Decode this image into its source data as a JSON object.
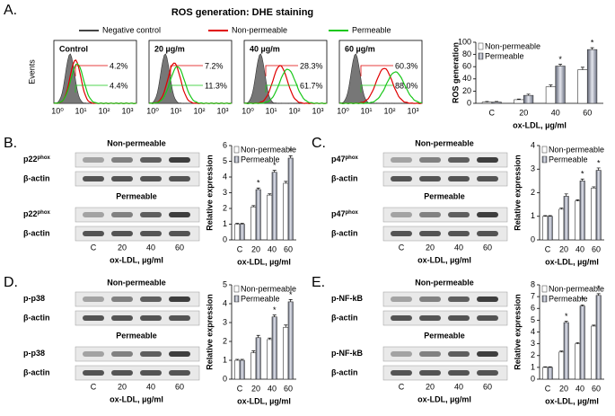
{
  "panel_letters": [
    "A.",
    "B.",
    "C.",
    "D.",
    "E."
  ],
  "flow": {
    "title": "ROS generation: DHE staining",
    "legend": [
      "Negative control",
      "Non-permeable",
      "Permeable"
    ],
    "y_label": "Events",
    "x_ticks": [
      "10⁰",
      "10¹",
      "10²",
      "10³"
    ],
    "plots": [
      {
        "label": "Control",
        "non_permeable": "4.2%",
        "permeable": "4.4%"
      },
      {
        "label": "20 µg/m",
        "non_permeable": "7.2%",
        "permeable": "11.3%"
      },
      {
        "label": "40 µg/m",
        "non_permeable": "28.3%",
        "permeable": "61.7%"
      },
      {
        "label": "60 µg/m",
        "non_permeable": "60.3%",
        "permeable": "88.0%"
      }
    ]
  },
  "blots": [
    {
      "group_titles": [
        "Non-permeable",
        "Permeable"
      ],
      "protein": {
        "base": "p22",
        "sup": "phox"
      },
      "loading": "β-actin",
      "lanes": [
        "C",
        "20",
        "40",
        "60"
      ],
      "x_label": "ox-LDL, µg/ml"
    },
    {
      "group_titles": [
        "Non-permeable",
        "Permeable"
      ],
      "protein": {
        "base": "p47",
        "sup": "phox"
      },
      "loading": "β-actin",
      "lanes": [
        "C",
        "20",
        "40",
        "60"
      ],
      "x_label": "ox-LDL, µg/ml"
    },
    {
      "group_titles": [
        "Non-permeable",
        "Permeable"
      ],
      "protein": {
        "base": "p-p38"
      },
      "loading": "β-actin",
      "lanes": [
        "C",
        "20",
        "40",
        "60"
      ],
      "x_label": "ox-LDL, µg/ml"
    },
    {
      "group_titles": [
        "Non-permeable",
        "Permeable"
      ],
      "protein": {
        "base": "p-NF-kB"
      },
      "loading": "β-actin",
      "lanes": [
        "C",
        "20",
        "40",
        "60"
      ],
      "x_label": "ox-LDL, µg/ml"
    }
  ],
  "chart_data": [
    {
      "type": "bar",
      "y_label": "ROS generation",
      "x_label": "ox-LDL, µg/ml",
      "categories": [
        "C",
        "20",
        "40",
        "60"
      ],
      "ylim": [
        0,
        100
      ],
      "yticks": [
        0,
        20,
        40,
        60,
        80,
        100
      ],
      "series": [
        {
          "name": "Non-permeable",
          "color": "#ffffff",
          "values": [
            2,
            6,
            27,
            55
          ],
          "errors": [
            1,
            1,
            3,
            4
          ]
        },
        {
          "name": "Permeable",
          "color": "#8a8fa0",
          "values": [
            2,
            13,
            61,
            88
          ],
          "errors": [
            1,
            2,
            3,
            3
          ],
          "significance": [
            null,
            null,
            "*",
            "*"
          ]
        }
      ]
    },
    {
      "type": "bar",
      "y_label": "Relative expression",
      "x_label": "ox-LDL, µg/ml",
      "categories": [
        "C",
        "20",
        "40",
        "60"
      ],
      "ylim": [
        0,
        6
      ],
      "yticks": [
        0,
        1,
        2,
        3,
        4,
        5,
        6
      ],
      "series": [
        {
          "name": "Non-permeable",
          "color": "#ffffff",
          "values": [
            1,
            2.1,
            2.85,
            3.6
          ],
          "errors": [
            0.05,
            0.08,
            0.08,
            0.12
          ]
        },
        {
          "name": "Permeable",
          "color": "#8a8fa0",
          "values": [
            1,
            3.2,
            4.3,
            5.2
          ],
          "errors": [
            0.05,
            0.1,
            0.12,
            0.15
          ],
          "significance": [
            null,
            "*",
            "*",
            "*"
          ]
        }
      ]
    },
    {
      "type": "bar",
      "y_label": "Relative expression",
      "x_label": "ox-LDL, µg/ml",
      "categories": [
        "C",
        "20",
        "40",
        "60"
      ],
      "ylim": [
        0,
        4
      ],
      "yticks": [
        0,
        1,
        2,
        3,
        4
      ],
      "series": [
        {
          "name": "Non-permeable",
          "color": "#ffffff",
          "values": [
            1,
            1.3,
            1.65,
            2.2
          ],
          "errors": [
            0.03,
            0.05,
            0.05,
            0.05
          ]
        },
        {
          "name": "Permeable",
          "color": "#8a8fa0",
          "values": [
            1,
            1.85,
            2.5,
            2.95
          ],
          "errors": [
            0.03,
            0.1,
            0.08,
            0.1
          ],
          "significance": [
            null,
            null,
            "*",
            "*"
          ]
        }
      ]
    },
    {
      "type": "bar",
      "y_label": "Relative expression",
      "x_label": "ox-LDL, µg/ml",
      "categories": [
        "C",
        "20",
        "40",
        "60"
      ],
      "ylim": [
        0,
        5
      ],
      "yticks": [
        0,
        1,
        2,
        3,
        4,
        5
      ],
      "series": [
        {
          "name": "Non-permeable",
          "color": "#ffffff",
          "values": [
            1,
            1.4,
            2.1,
            2.75
          ],
          "errors": [
            0.05,
            0.1,
            0.08,
            0.12
          ]
        },
        {
          "name": "Permeable",
          "color": "#8a8fa0",
          "values": [
            1,
            2.2,
            3.3,
            4.1
          ],
          "errors": [
            0.05,
            0.12,
            0.1,
            0.12
          ],
          "significance": [
            null,
            null,
            "*",
            "*"
          ]
        }
      ]
    },
    {
      "type": "bar",
      "y_label": "Relative expression",
      "x_label": "ox-LDL, µg/ml",
      "categories": [
        "C",
        "20",
        "40",
        "60"
      ],
      "ylim": [
        0,
        8
      ],
      "yticks": [
        0,
        1,
        2,
        3,
        4,
        5,
        6,
        7,
        8
      ],
      "series": [
        {
          "name": "Non-permeable",
          "color": "#ffffff",
          "values": [
            1,
            2.3,
            3,
            4.5
          ],
          "errors": [
            0.05,
            0.08,
            0.1,
            0.08
          ]
        },
        {
          "name": "Permeable",
          "color": "#8a8fa0",
          "values": [
            1,
            4.8,
            6.2,
            7.1
          ],
          "errors": [
            0.05,
            0.12,
            0.1,
            0.15
          ],
          "significance": [
            null,
            "*",
            "*",
            "*"
          ]
        }
      ]
    }
  ]
}
